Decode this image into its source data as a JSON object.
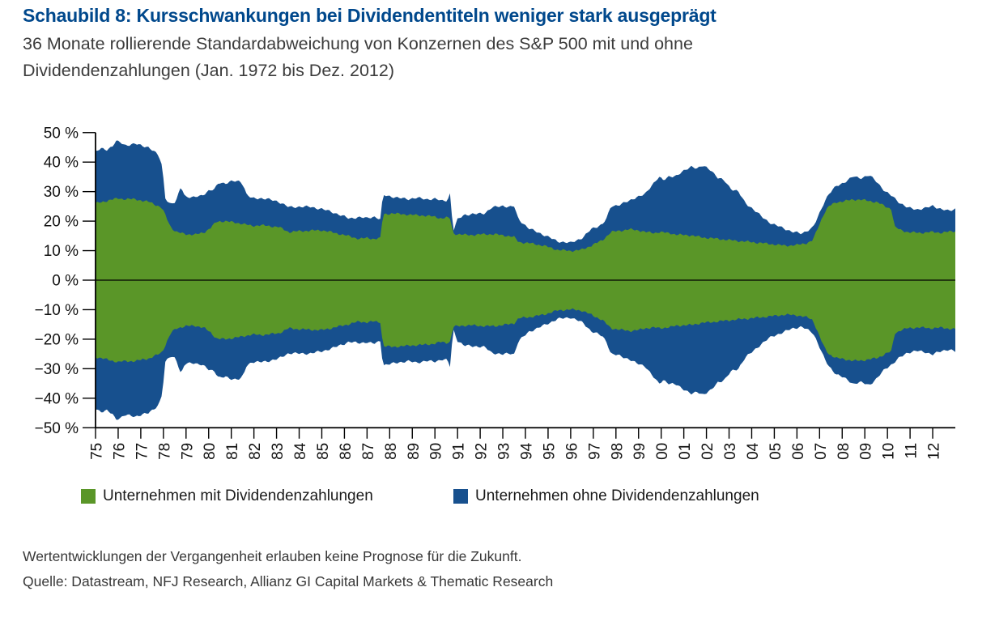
{
  "header": {
    "title": "Schaubild 8: Kursschwankungen bei Dividendentiteln weniger stark ausgeprägt",
    "subtitle_line1": "36 Monate rollierende Standardabweichung von Konzernen des S&P 500 mit und ohne",
    "subtitle_line2": "Dividendenzahlungen (Jan. 1972 bis Dez. 2012)"
  },
  "legend": {
    "items": [
      {
        "label": "Unternehmen mit Dividendenzahlungen",
        "color": "#5a9628"
      },
      {
        "label": "Unternehmen ohne Dividendenzahlungen",
        "color": "#17508e"
      }
    ]
  },
  "footer": {
    "line1": "Wertentwicklungen der Vergangenheit erlauben keine Prognose für die Zukunft.",
    "line2": "Quelle: Datastream, NFJ Research, Allianz GI Capital Markets & Thematic Research"
  },
  "chart_data": {
    "type": "area",
    "title": "36 Monate rollierende Standardabweichung von Konzernen des S&P 500 mit und ohne Dividendenzahlungen (Jan. 1972 bis Dez. 2012)",
    "mirrored_around_zero": true,
    "unit": "%",
    "ylim": [
      -50,
      50
    ],
    "y_axis": {
      "step": 10,
      "tick_labels": [
        "50 %",
        "40 %",
        "30 %",
        "20 %",
        "10 %",
        "0 %",
        "−10 %",
        "−20 %",
        "−30 %",
        "−40 %",
        "−50 %"
      ]
    },
    "x_axis": {
      "start_year": 1975,
      "end_year": 2013,
      "tick_labels": [
        "75",
        "76",
        "77",
        "78",
        "79",
        "80",
        "81",
        "82",
        "83",
        "84",
        "85",
        "86",
        "87",
        "88",
        "89",
        "90",
        "91",
        "92",
        "93",
        "94",
        "95",
        "96",
        "97",
        "98",
        "99",
        "00",
        "01",
        "02",
        "03",
        "04",
        "05",
        "06",
        "07",
        "08",
        "09",
        "10",
        "11",
        "12"
      ]
    },
    "grid": false,
    "legend_position": "bottom",
    "series": [
      {
        "name": "Unternehmen ohne Dividendenzahlungen",
        "color": "#17508e",
        "role": "outer-envelope",
        "points": [
          [
            1975.0,
            43.6
          ],
          [
            1975.25,
            44.5
          ],
          [
            1975.5,
            44.2
          ],
          [
            1975.75,
            45.5
          ],
          [
            1975.9,
            47.1
          ],
          [
            1976.1,
            46.6
          ],
          [
            1976.3,
            45.7
          ],
          [
            1976.55,
            46.0
          ],
          [
            1976.75,
            46.2
          ],
          [
            1977.0,
            45.6
          ],
          [
            1977.35,
            45.1
          ],
          [
            1977.6,
            43.5
          ],
          [
            1977.8,
            42.0
          ],
          [
            1977.95,
            38.5
          ],
          [
            1978.08,
            28.0
          ],
          [
            1978.3,
            25.7
          ],
          [
            1978.55,
            26.4
          ],
          [
            1978.78,
            32.0
          ],
          [
            1978.95,
            28.4
          ],
          [
            1979.3,
            27.9
          ],
          [
            1979.7,
            28.8
          ],
          [
            1980.0,
            30.2
          ],
          [
            1980.25,
            30.7
          ],
          [
            1980.45,
            33.2
          ],
          [
            1980.75,
            32.8
          ],
          [
            1981.05,
            33.5
          ],
          [
            1981.4,
            33.6
          ],
          [
            1981.55,
            32.0
          ],
          [
            1981.65,
            29.2
          ],
          [
            1981.9,
            27.7
          ],
          [
            1982.3,
            27.8
          ],
          [
            1982.7,
            27.3
          ],
          [
            1983.1,
            26.6
          ],
          [
            1983.54,
            24.7
          ],
          [
            1984.0,
            24.9
          ],
          [
            1984.5,
            24.8
          ],
          [
            1985.0,
            24.1
          ],
          [
            1985.5,
            23.0
          ],
          [
            1985.9,
            21.8
          ],
          [
            1986.2,
            20.9
          ],
          [
            1986.6,
            21.3
          ],
          [
            1987.0,
            21.0
          ],
          [
            1987.3,
            21.6
          ],
          [
            1987.6,
            20.5
          ],
          [
            1987.7,
            28.8
          ],
          [
            1988.0,
            28.5
          ],
          [
            1988.4,
            27.8
          ],
          [
            1988.8,
            27.5
          ],
          [
            1989.2,
            27.9
          ],
          [
            1989.6,
            27.4
          ],
          [
            1990.0,
            27.6
          ],
          [
            1990.3,
            26.8
          ],
          [
            1990.55,
            27.1
          ],
          [
            1990.68,
            29.5
          ],
          [
            1990.8,
            16.4
          ],
          [
            1991.0,
            20.5
          ],
          [
            1991.3,
            22.2
          ],
          [
            1991.8,
            22.4
          ],
          [
            1992.2,
            22.7
          ],
          [
            1992.5,
            24.5
          ],
          [
            1993.0,
            25.2
          ],
          [
            1993.3,
            24.8
          ],
          [
            1993.5,
            25.0
          ],
          [
            1993.68,
            20.8
          ],
          [
            1994.15,
            17.5
          ],
          [
            1994.8,
            15.4
          ],
          [
            1995.4,
            13.2
          ],
          [
            1996.0,
            12.6
          ],
          [
            1996.55,
            14.5
          ],
          [
            1996.9,
            17.2
          ],
          [
            1997.4,
            19.0
          ],
          [
            1997.6,
            21.0
          ],
          [
            1997.78,
            25.0
          ],
          [
            1998.1,
            25.5
          ],
          [
            1998.6,
            26.8
          ],
          [
            1998.9,
            28.2
          ],
          [
            1999.3,
            29.1
          ],
          [
            1999.65,
            32.8
          ],
          [
            1999.9,
            35.1
          ],
          [
            2000.1,
            33.7
          ],
          [
            2000.35,
            35.1
          ],
          [
            2000.7,
            35.5
          ],
          [
            2001.1,
            37.4
          ],
          [
            2001.35,
            38.7
          ],
          [
            2001.6,
            37.8
          ],
          [
            2001.85,
            38.7
          ],
          [
            2002.2,
            37.4
          ],
          [
            2002.5,
            34.6
          ],
          [
            2002.8,
            33.7
          ],
          [
            2003.1,
            30.9
          ],
          [
            2003.4,
            30.0
          ],
          [
            2003.7,
            26.4
          ],
          [
            2004.05,
            24.1
          ],
          [
            2004.4,
            21.8
          ],
          [
            2004.9,
            19.0
          ],
          [
            2005.4,
            17.7
          ],
          [
            2005.8,
            16.3
          ],
          [
            2006.2,
            15.8
          ],
          [
            2006.45,
            16.8
          ],
          [
            2006.7,
            17.7
          ],
          [
            2006.9,
            20.9
          ],
          [
            2007.2,
            26.4
          ],
          [
            2007.4,
            29.1
          ],
          [
            2007.75,
            31.9
          ],
          [
            2008.1,
            33.2
          ],
          [
            2008.5,
            35.1
          ],
          [
            2008.8,
            34.6
          ],
          [
            2009.2,
            35.5
          ],
          [
            2009.55,
            33.2
          ],
          [
            2009.9,
            30.0
          ],
          [
            2010.25,
            28.2
          ],
          [
            2010.55,
            26.2
          ],
          [
            2010.9,
            24.5
          ],
          [
            2011.3,
            24.0
          ],
          [
            2011.7,
            24.4
          ],
          [
            2012.0,
            25.2
          ],
          [
            2012.4,
            24.0
          ],
          [
            2012.7,
            23.4
          ],
          [
            2013.0,
            24.2
          ]
        ]
      },
      {
        "name": "Unternehmen mit Dividendenzahlungen",
        "color": "#5a9628",
        "role": "inner-envelope",
        "points": [
          [
            1975.0,
            26.0
          ],
          [
            1975.4,
            26.7
          ],
          [
            1975.8,
            27.4
          ],
          [
            1976.0,
            27.8
          ],
          [
            1976.3,
            27.4
          ],
          [
            1976.75,
            27.5
          ],
          [
            1977.1,
            26.8
          ],
          [
            1977.4,
            26.5
          ],
          [
            1977.7,
            25.4
          ],
          [
            1977.95,
            24.3
          ],
          [
            1978.15,
            20.9
          ],
          [
            1978.35,
            17.7
          ],
          [
            1978.6,
            16.2
          ],
          [
            1979.0,
            15.6
          ],
          [
            1979.4,
            15.4
          ],
          [
            1979.8,
            16.2
          ],
          [
            1980.1,
            17.8
          ],
          [
            1980.35,
            19.8
          ],
          [
            1980.7,
            20.0
          ],
          [
            1981.1,
            19.6
          ],
          [
            1981.5,
            19.1
          ],
          [
            1981.9,
            18.4
          ],
          [
            1982.3,
            18.6
          ],
          [
            1982.7,
            18.3
          ],
          [
            1983.1,
            18.0
          ],
          [
            1983.54,
            16.3
          ],
          [
            1984.0,
            16.6
          ],
          [
            1984.5,
            16.8
          ],
          [
            1985.0,
            16.9
          ],
          [
            1985.4,
            16.3
          ],
          [
            1985.7,
            15.8
          ],
          [
            1986.2,
            14.9
          ],
          [
            1986.65,
            14.0
          ],
          [
            1987.0,
            14.3
          ],
          [
            1987.3,
            14.0
          ],
          [
            1987.6,
            14.2
          ],
          [
            1987.7,
            22.3
          ],
          [
            1988.1,
            22.6
          ],
          [
            1988.5,
            22.4
          ],
          [
            1989.0,
            22.1
          ],
          [
            1989.5,
            21.9
          ],
          [
            1990.0,
            21.5
          ],
          [
            1990.3,
            20.9
          ],
          [
            1990.5,
            21.2
          ],
          [
            1990.68,
            20.9
          ],
          [
            1990.8,
            15.8
          ],
          [
            1991.2,
            15.4
          ],
          [
            1991.7,
            15.3
          ],
          [
            1992.2,
            15.6
          ],
          [
            1992.7,
            15.5
          ],
          [
            1993.2,
            15.0
          ],
          [
            1993.5,
            14.6
          ],
          [
            1993.7,
            12.9
          ],
          [
            1994.2,
            12.5
          ],
          [
            1994.8,
            11.7
          ],
          [
            1995.4,
            10.3
          ],
          [
            1996.0,
            9.9
          ],
          [
            1996.5,
            10.3
          ],
          [
            1996.9,
            11.7
          ],
          [
            1997.4,
            13.5
          ],
          [
            1997.78,
            16.3
          ],
          [
            1998.2,
            16.8
          ],
          [
            1998.6,
            17.2
          ],
          [
            1999.0,
            16.9
          ],
          [
            1999.3,
            16.3
          ],
          [
            1999.7,
            16.0
          ],
          [
            1999.9,
            16.3
          ],
          [
            2000.4,
            15.9
          ],
          [
            2000.7,
            15.4
          ],
          [
            2001.3,
            15.2
          ],
          [
            2001.8,
            14.5
          ],
          [
            2002.5,
            14.0
          ],
          [
            2003.1,
            13.5
          ],
          [
            2003.7,
            13.1
          ],
          [
            2004.4,
            12.6
          ],
          [
            2005.0,
            12.1
          ],
          [
            2005.5,
            11.7
          ],
          [
            2006.0,
            11.9
          ],
          [
            2006.45,
            12.6
          ],
          [
            2006.7,
            13.5
          ],
          [
            2006.9,
            17.2
          ],
          [
            2007.2,
            22.7
          ],
          [
            2007.4,
            25.0
          ],
          [
            2007.75,
            26.4
          ],
          [
            2008.1,
            26.8
          ],
          [
            2008.5,
            27.3
          ],
          [
            2008.8,
            27.3
          ],
          [
            2009.2,
            26.8
          ],
          [
            2009.55,
            26.4
          ],
          [
            2009.9,
            25.0
          ],
          [
            2010.2,
            24.0
          ],
          [
            2010.3,
            18.1
          ],
          [
            2010.6,
            16.9
          ],
          [
            2010.9,
            16.3
          ],
          [
            2011.4,
            16.0
          ],
          [
            2011.9,
            16.3
          ],
          [
            2012.4,
            16.1
          ],
          [
            2012.7,
            16.4
          ],
          [
            2013.0,
            16.6
          ]
        ]
      }
    ]
  }
}
